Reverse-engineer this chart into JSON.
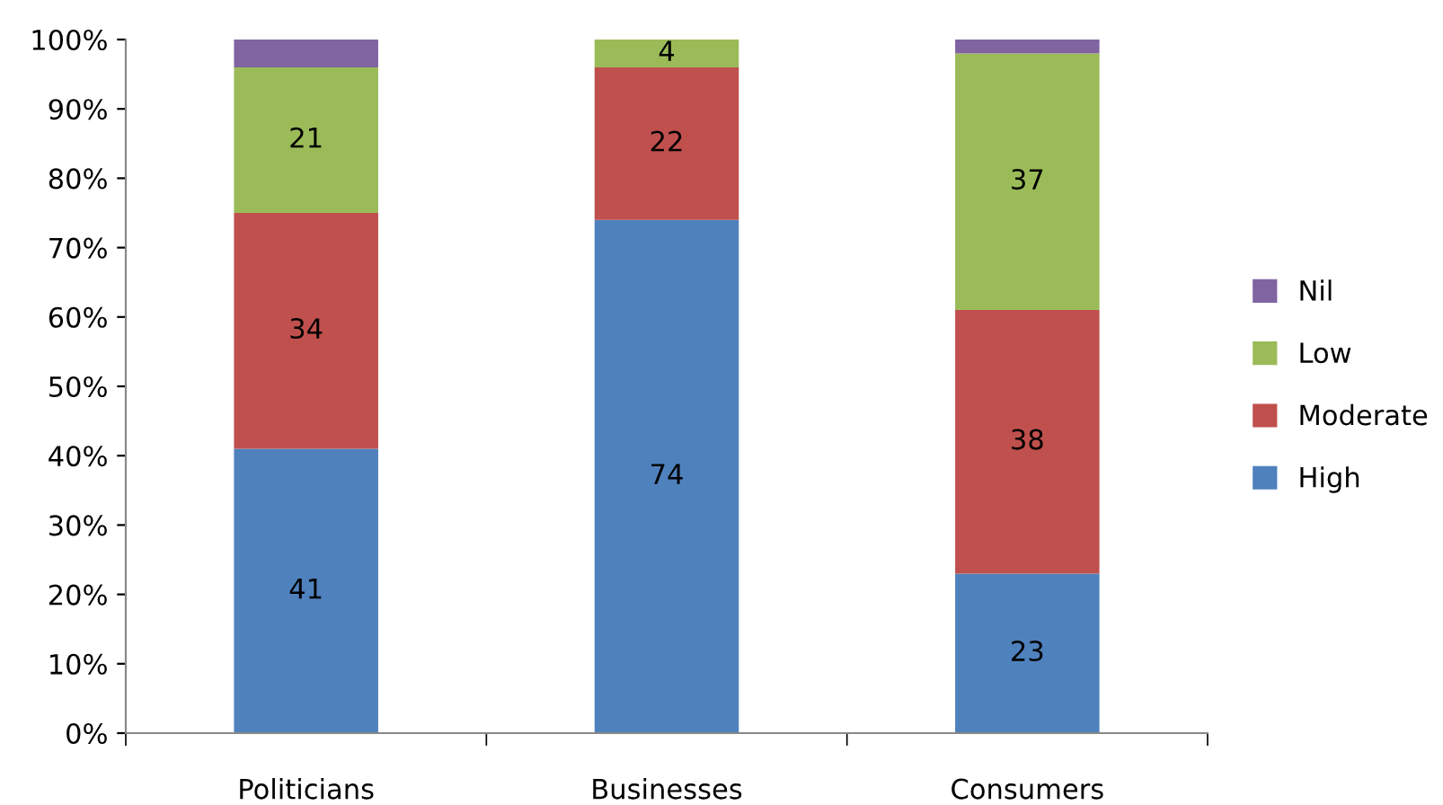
{
  "chart_data": {
    "type": "bar",
    "stacked": true,
    "categories": [
      "Politicians",
      "Businesses",
      "Consumers"
    ],
    "series": [
      {
        "name": "High",
        "color": "#4f81bd",
        "values": [
          41,
          74,
          23
        ],
        "value_labels": [
          "41",
          "74",
          "23"
        ]
      },
      {
        "name": "Moderate",
        "color": "#c0504d",
        "values": [
          34,
          22,
          38
        ],
        "value_labels": [
          "34",
          "22",
          "38"
        ]
      },
      {
        "name": "Low",
        "color": "#9bbb59",
        "values": [
          21,
          4,
          37
        ],
        "value_labels": [
          "21",
          "4",
          "37"
        ]
      },
      {
        "name": "Nil",
        "color": "#8064a2",
        "values": [
          4,
          0,
          2
        ],
        "value_labels": [
          null,
          null,
          null
        ]
      }
    ],
    "ylim": [
      0,
      100
    ],
    "yticks": [
      {
        "value": 0,
        "label": "0%"
      },
      {
        "value": 10,
        "label": "10%"
      },
      {
        "value": 20,
        "label": "20%"
      },
      {
        "value": 30,
        "label": "30%"
      },
      {
        "value": 40,
        "label": "40%"
      },
      {
        "value": 50,
        "label": "50%"
      },
      {
        "value": 60,
        "label": "60%"
      },
      {
        "value": 70,
        "label": "70%"
      },
      {
        "value": 80,
        "label": "80%"
      },
      {
        "value": 90,
        "label": "90%"
      },
      {
        "value": 100,
        "label": "100%"
      }
    ],
    "grid": false,
    "legend": "right"
  }
}
